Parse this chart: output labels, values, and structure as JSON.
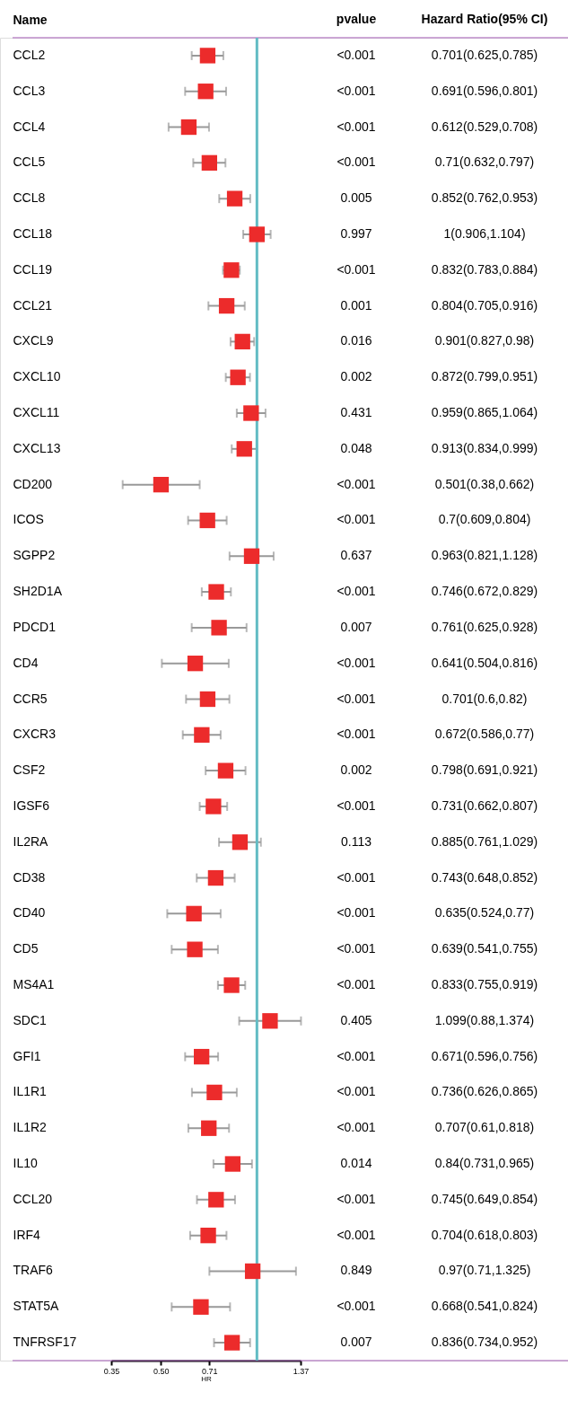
{
  "chart_data": {
    "type": "scatter",
    "orientation": "horizontal",
    "ylabel": "Name",
    "xlabel": "HR",
    "log": "x",
    "xlim": [
      0.35,
      1.37
    ],
    "xticks": [
      0.35,
      {
        "value": 0.5,
        "label": "0.50"
      },
      0.71,
      1.37
    ],
    "grid": false,
    "marker": "square",
    "categories": [
      "CCL2",
      "CCL3",
      "CCL4",
      "CCL5",
      "CCL8",
      "CCL18",
      "CCL19",
      "CCL21",
      "CXCL9",
      "CXCL10",
      "CXCL11",
      "CXCL13",
      "CD200",
      "ICOS",
      "SGPP2",
      "SH2D1A",
      "PDCD1",
      "CD4",
      "CCR5",
      "CXCR3",
      "CSF2",
      "IGSF6",
      "IL2RA",
      "CD38",
      "CD40",
      "CD5",
      "MS4A1",
      "SDC1",
      "GFI1",
      "IL1R1",
      "IL1R2",
      "IL10",
      "CCL20",
      "IRF4",
      "TRAF6",
      "STAT5A",
      "TNFRSF17"
    ],
    "series": [
      {
        "color": "#ec2b2b",
        "values": [
          0.701,
          0.691,
          0.612,
          0.71,
          0.852,
          1,
          0.832,
          0.804,
          0.901,
          0.872,
          0.959,
          0.913,
          0.501,
          0.7,
          0.963,
          0.746,
          0.761,
          0.641,
          0.701,
          0.672,
          0.798,
          0.731,
          0.885,
          0.743,
          0.635,
          0.639,
          0.833,
          1.099,
          0.671,
          0.736,
          0.707,
          0.84,
          0.745,
          0.704,
          0.97,
          0.668,
          0.836
        ],
        "errors": [
          [
            0.625,
            0.785
          ],
          [
            0.596,
            0.801
          ],
          [
            0.529,
            0.708
          ],
          [
            0.632,
            0.797
          ],
          [
            0.762,
            0.953
          ],
          [
            0.906,
            1.104
          ],
          [
            0.783,
            0.884
          ],
          [
            0.705,
            0.916
          ],
          [
            0.827,
            0.98
          ],
          [
            0.799,
            0.951
          ],
          [
            0.865,
            1.064
          ],
          [
            0.834,
            0.999
          ],
          [
            0.38,
            0.662
          ],
          [
            0.609,
            0.804
          ],
          [
            0.821,
            1.128
          ],
          [
            0.672,
            0.829
          ],
          [
            0.625,
            0.928
          ],
          [
            0.504,
            0.816
          ],
          [
            0.6,
            0.82
          ],
          [
            0.586,
            0.77
          ],
          [
            0.691,
            0.921
          ],
          [
            0.662,
            0.807
          ],
          [
            0.761,
            1.029
          ],
          [
            0.648,
            0.852
          ],
          [
            0.524,
            0.77
          ],
          [
            0.541,
            0.755
          ],
          [
            0.755,
            0.919
          ],
          [
            0.88,
            1.374
          ],
          [
            0.596,
            0.756
          ],
          [
            0.626,
            0.865
          ],
          [
            0.61,
            0.818
          ],
          [
            0.731,
            0.965
          ],
          [
            0.649,
            0.854
          ],
          [
            0.618,
            0.803
          ],
          [
            0.71,
            1.325
          ],
          [
            0.541,
            0.824
          ],
          [
            0.734,
            0.952
          ]
        ]
      }
    ],
    "ref_lines": [
      {
        "axis": "x",
        "value": 1,
        "color": "#62bcc4"
      }
    ],
    "annotations": [
      "pvalue",
      "<0.001",
      "<0.001",
      "<0.001",
      "<0.001",
      "0.005",
      "0.997",
      "<0.001",
      "0.001",
      "0.016",
      "0.002",
      "0.431",
      "0.048",
      "<0.001",
      "<0.001",
      "0.637",
      "<0.001",
      "0.007",
      "<0.001",
      "<0.001",
      "<0.001",
      "0.002",
      "<0.001",
      "0.113",
      "<0.001",
      "<0.001",
      "<0.001",
      "<0.001",
      "0.405",
      "<0.001",
      "<0.001",
      "<0.001",
      "0.014",
      "<0.001",
      "<0.001",
      "0.849",
      "<0.001",
      "0.007",
      "Hazard Ratio(95% CI)",
      "0.701(0.625,0.785)",
      "0.691(0.596,0.801)",
      "0.612(0.529,0.708)",
      "0.71(0.632,0.797)",
      "0.852(0.762,0.953)",
      "1(0.906,1.104)",
      "0.832(0.783,0.884)",
      "0.804(0.705,0.916)",
      "0.901(0.827,0.98)",
      "0.872(0.799,0.951)",
      "0.959(0.865,1.064)",
      "0.913(0.834,0.999)",
      "0.501(0.38,0.662)",
      "0.7(0.609,0.804)",
      "0.963(0.821,1.128)",
      "0.746(0.672,0.829)",
      "0.761(0.625,0.928)",
      "0.641(0.504,0.816)",
      "0.701(0.6,0.82)",
      "0.672(0.586,0.77)",
      "0.798(0.691,0.921)",
      "0.731(0.662,0.807)",
      "0.885(0.761,1.029)",
      "0.743(0.648,0.852)",
      "0.635(0.524,0.77)",
      "0.639(0.541,0.755)",
      "0.833(0.755,0.919)",
      "1.099(0.88,1.374)",
      "0.671(0.596,0.756)",
      "0.736(0.626,0.865)",
      "0.707(0.61,0.818)",
      "0.84(0.731,0.965)",
      "0.745(0.649,0.854)",
      "0.704(0.618,0.803)",
      "0.97(0.71,1.325)",
      "0.668(0.541,0.824)",
      "0.836(0.734,0.952)"
    ]
  }
}
